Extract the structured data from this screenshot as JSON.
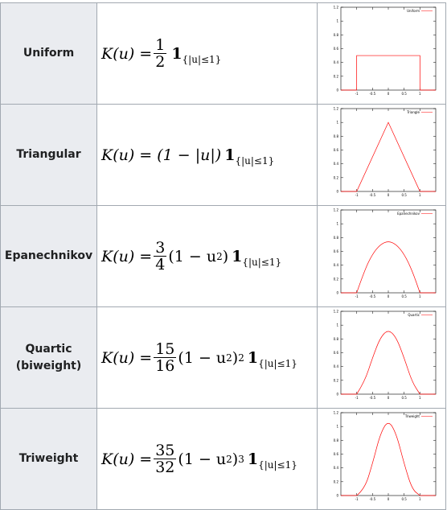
{
  "rows": [
    {
      "name": "Uniform",
      "formula": {
        "lhs": "K(u) =",
        "num": "1",
        "den": "2",
        "mid": "",
        "pow": "",
        "ind": "1",
        "sub": "{|u|≤1}"
      },
      "chart_data": {
        "type": "line",
        "legend": "Uniform",
        "line_color": "#ff0000",
        "xlim": [
          -1.5,
          1.5
        ],
        "ylim": [
          0,
          1.2
        ],
        "xticks": [
          "-1",
          "-0.5",
          "0",
          "0.5",
          "1"
        ],
        "yticks": [
          "0",
          "0.2",
          "0.4",
          "0.6",
          "0.8",
          "1",
          "1.2"
        ],
        "x": [
          -1,
          -1,
          1,
          1
        ],
        "y": [
          0,
          0.5,
          0.5,
          0
        ]
      }
    },
    {
      "name": "Triangular",
      "formula": {
        "lhs": "K(u) = (1 − |u|)",
        "num": "",
        "den": "",
        "mid": "",
        "pow": "",
        "ind": "1",
        "sub": "{|u|≤1}"
      },
      "chart_data": {
        "type": "line",
        "legend": "Triangle",
        "line_color": "#ff0000",
        "xlim": [
          -1.5,
          1.5
        ],
        "ylim": [
          0,
          1.2
        ],
        "xticks": [
          "-1",
          "-0.5",
          "0",
          "0.5",
          "1"
        ],
        "yticks": [
          "0",
          "0.2",
          "0.4",
          "0.6",
          "0.8",
          "1",
          "1.2"
        ],
        "x": [
          -1,
          0,
          1
        ],
        "y": [
          0,
          1,
          0
        ]
      }
    },
    {
      "name": "Epanechnikov",
      "formula": {
        "lhs": "K(u) =",
        "num": "3",
        "den": "4",
        "mid": "(1 − u",
        "pow": "2",
        "ind": "1",
        "sub": "{|u|≤1}"
      },
      "chart_data": {
        "type": "line",
        "legend": "Epanechnikov",
        "line_color": "#ff0000",
        "xlim": [
          -1.5,
          1.5
        ],
        "ylim": [
          0,
          1.2
        ],
        "xticks": [
          "-1",
          "-0.5",
          "0",
          "0.5",
          "1"
        ],
        "yticks": [
          "0",
          "0.2",
          "0.4",
          "0.6",
          "0.8",
          "1",
          "1.2"
        ],
        "x": [
          -1,
          -0.75,
          -0.5,
          -0.25,
          0,
          0.25,
          0.5,
          0.75,
          1
        ],
        "y": [
          0,
          0.328,
          0.5625,
          0.703,
          0.75,
          0.703,
          0.5625,
          0.328,
          0
        ]
      }
    },
    {
      "name": "Quartic (biweight)",
      "formula": {
        "lhs": "K(u) =",
        "num": "15",
        "den": "16",
        "mid": "(1 − u",
        "pow": "2",
        "ind": "1",
        "sub": "{|u|≤1}"
      },
      "chart_data": {
        "type": "line",
        "legend": "Quartic",
        "line_color": "#ff0000",
        "xlim": [
          -1.5,
          1.5
        ],
        "ylim": [
          0,
          1.2
        ],
        "xticks": [
          "-1",
          "-0.5",
          "0",
          "0.5",
          "1"
        ],
        "yticks": [
          "0",
          "0.2",
          "0.4",
          "0.6",
          "0.8",
          "1",
          "1.2"
        ],
        "x": [
          -1,
          -0.75,
          -0.5,
          -0.25,
          0,
          0.25,
          0.5,
          0.75,
          1
        ],
        "y": [
          0,
          0.179,
          0.527,
          0.824,
          0.9375,
          0.824,
          0.527,
          0.179,
          0
        ]
      }
    },
    {
      "name": "Triweight",
      "formula": {
        "lhs": "K(u) =",
        "num": "35",
        "den": "32",
        "mid": "(1 − u",
        "pow": "3",
        "ind": "1",
        "sub": "{|u|≤1}"
      },
      "chart_data": {
        "type": "line",
        "legend": "Triweight",
        "line_color": "#ff0000",
        "xlim": [
          -1.5,
          1.5
        ],
        "ylim": [
          0,
          1.2
        ],
        "xticks": [
          "-1",
          "-0.5",
          "0",
          "0.5",
          "1"
        ],
        "yticks": [
          "0",
          "0.2",
          "0.4",
          "0.6",
          "0.8",
          "1",
          "1.2"
        ],
        "x": [
          -1,
          -0.75,
          -0.5,
          -0.25,
          0,
          0.25,
          0.5,
          0.75,
          1
        ],
        "y": [
          0,
          0.0916,
          0.4614,
          0.901,
          1.09375,
          0.901,
          0.4614,
          0.0916,
          0
        ]
      }
    }
  ]
}
